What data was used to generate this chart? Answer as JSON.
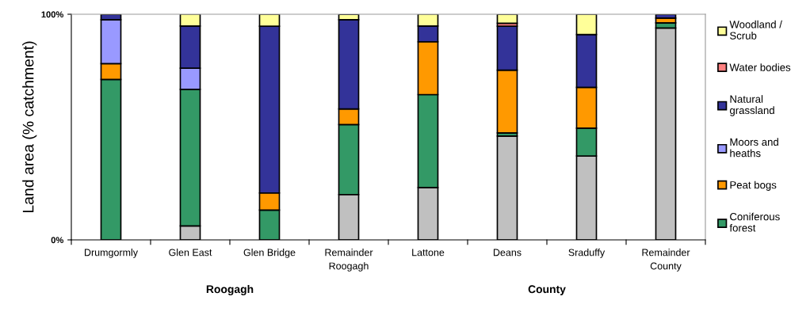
{
  "chart_data": {
    "type": "bar",
    "stacked": true,
    "ylabel": "Land area (% catchment)",
    "categories": [
      "Drumgormly",
      "Glen East",
      "Glen Bridge",
      "Remainder\nRoogagh",
      "Lattone",
      "Deans",
      "Sraduffy",
      "Remainder\nCounty"
    ],
    "series": [
      {
        "color": "#c0c0c0",
        "values": [
          0,
          6.2,
          0,
          20.1,
          23.2,
          46.0,
          37.2,
          93.9
        ]
      },
      {
        "name": "Coniferous\nforest",
        "color": "#339966",
        "values": [
          71.1,
          60.5,
          13.2,
          31.0,
          41.2,
          1.4,
          12.3,
          2.3
        ]
      },
      {
        "name": "Peat bogs",
        "color": "#ff9900",
        "values": [
          7.0,
          0,
          7.6,
          6.9,
          23.4,
          27.8,
          18.1,
          2.1
        ]
      },
      {
        "name": "Moors and\nheaths",
        "color": "#9999ff",
        "values": [
          19.5,
          9.4,
          0,
          0,
          0,
          0,
          0,
          0
        ]
      },
      {
        "name": "Natural\ngrassland",
        "color": "#333399",
        "values": [
          2.3,
          18.7,
          73.9,
          39.6,
          7.0,
          19.5,
          23.4,
          1.6
        ]
      },
      {
        "name": "Water bodies",
        "color": "#ff8080",
        "values": [
          0,
          0,
          0,
          0,
          0,
          1.3,
          0,
          0
        ]
      },
      {
        "name": "Woodland /\nScrub",
        "color": "#ffff99",
        "values": [
          0,
          5.3,
          5.3,
          2.3,
          5.3,
          4.0,
          9.0,
          0
        ]
      }
    ],
    "ylim": [
      0,
      100
    ],
    "yticks": [
      {
        "value": 0,
        "label": "0%"
      },
      {
        "value": 100,
        "label": "100%"
      }
    ],
    "legend": "right",
    "grid": false,
    "annotations": [
      "Roogagh",
      "County"
    ]
  }
}
